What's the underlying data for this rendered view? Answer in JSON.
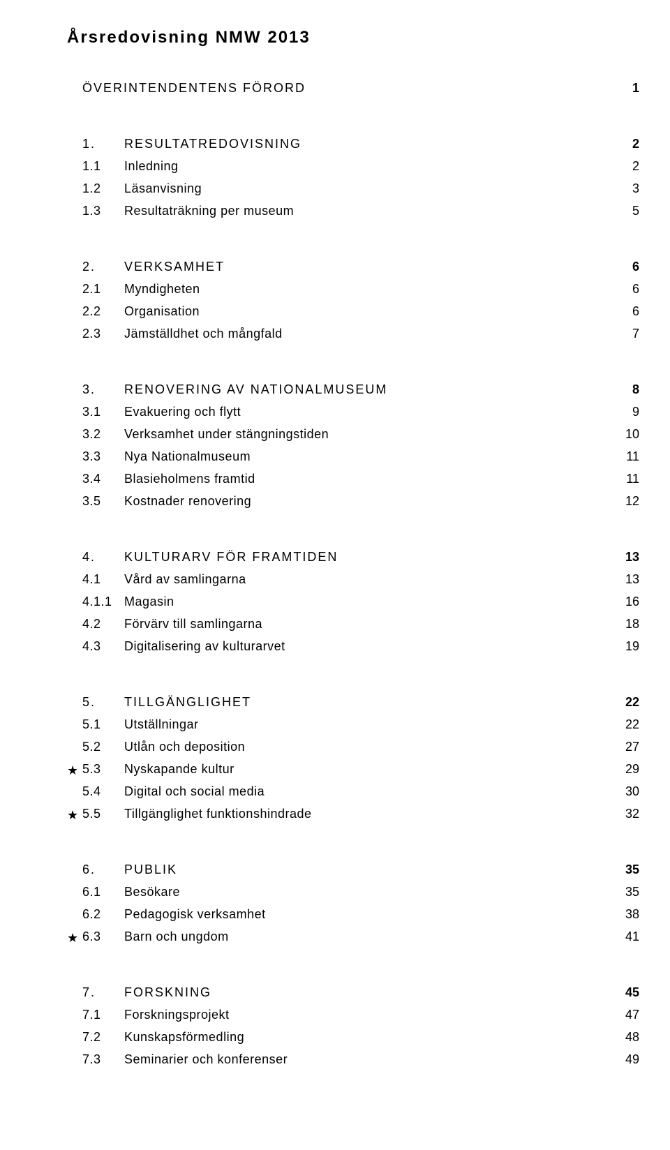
{
  "title": "Årsredovisning NMW 2013",
  "sections": [
    {
      "num": "",
      "label": "ÖVERINTENDENTENS FÖRORD",
      "page": "1",
      "items": []
    },
    {
      "num": "1.",
      "label": "RESULTATREDOVISNING",
      "page": "2",
      "items": [
        {
          "num": "1.1",
          "label": "Inledning",
          "page": "2",
          "star": false
        },
        {
          "num": "1.2",
          "label": "Läsanvisning",
          "page": "3",
          "star": false
        },
        {
          "num": "1.3",
          "label": "Resultaträkning per museum",
          "page": "5",
          "star": false
        }
      ]
    },
    {
      "num": "2.",
      "label": "VERKSAMHET",
      "page": "6",
      "items": [
        {
          "num": "2.1",
          "label": "Myndigheten",
          "page": "6",
          "star": false
        },
        {
          "num": "2.2",
          "label": "Organisation",
          "page": "6",
          "star": false
        },
        {
          "num": "2.3",
          "label": "Jämställdhet och mångfald",
          "page": "7",
          "star": false
        }
      ]
    },
    {
      "num": "3.",
      "label": "RENOVERING AV NATIONALMUSEUM",
      "page": "8",
      "items": [
        {
          "num": "3.1",
          "label": "Evakuering och flytt",
          "page": "9",
          "star": false
        },
        {
          "num": "3.2",
          "label": "Verksamhet under stängningstiden",
          "page": "10",
          "star": false
        },
        {
          "num": "3.3",
          "label": "Nya Nationalmuseum",
          "page": "11",
          "star": false
        },
        {
          "num": "3.4",
          "label": "Blasieholmens framtid",
          "page": "11",
          "star": false
        },
        {
          "num": "3.5",
          "label": "Kostnader renovering",
          "page": "12",
          "star": false
        }
      ]
    },
    {
      "num": "4.",
      "label": "KULTURARV FÖR FRAMTIDEN",
      "page": "13",
      "items": [
        {
          "num": "4.1",
          "label": "Vård av samlingarna",
          "page": "13",
          "star": false
        },
        {
          "num": "4.1.1",
          "label": "Magasin",
          "page": "16",
          "star": false
        },
        {
          "num": "4.2",
          "label": "Förvärv till samlingarna",
          "page": "18",
          "star": false
        },
        {
          "num": "4.3",
          "label": "Digitalisering av kulturarvet",
          "page": "19",
          "star": false
        }
      ]
    },
    {
      "num": "5.",
      "label": "TILLGÄNGLIGHET",
      "page": "22",
      "items": [
        {
          "num": "5.1",
          "label": "Utställningar",
          "page": "22",
          "star": false
        },
        {
          "num": "5.2",
          "label": "Utlån och deposition",
          "page": "27",
          "star": false
        },
        {
          "num": "5.3",
          "label": "Nyskapande kultur",
          "page": "29",
          "star": true
        },
        {
          "num": "5.4",
          "label": "Digital och social media",
          "page": "30",
          "star": false
        },
        {
          "num": "5.5",
          "label": "Tillgänglighet funktionshindrade",
          "page": "32",
          "star": true
        }
      ]
    },
    {
      "num": "6.",
      "label": "PUBLIK",
      "page": "35",
      "items": [
        {
          "num": "6.1",
          "label": "Besökare",
          "page": "35",
          "star": false
        },
        {
          "num": "6.2",
          "label": "Pedagogisk verksamhet",
          "page": "38",
          "star": false
        },
        {
          "num": "6.3",
          "label": "Barn och ungdom",
          "page": "41",
          "star": true
        }
      ]
    },
    {
      "num": "7.",
      "label": "FORSKNING",
      "page": "45",
      "items": [
        {
          "num": "7.1",
          "label": "Forskningsprojekt",
          "page": "47",
          "star": false
        },
        {
          "num": "7.2",
          "label": "Kunskapsförmedling",
          "page": "48",
          "star": false
        },
        {
          "num": "7.3",
          "label": "Seminarier och konferenser",
          "page": "49",
          "star": false
        }
      ]
    }
  ],
  "star_glyph": "★"
}
